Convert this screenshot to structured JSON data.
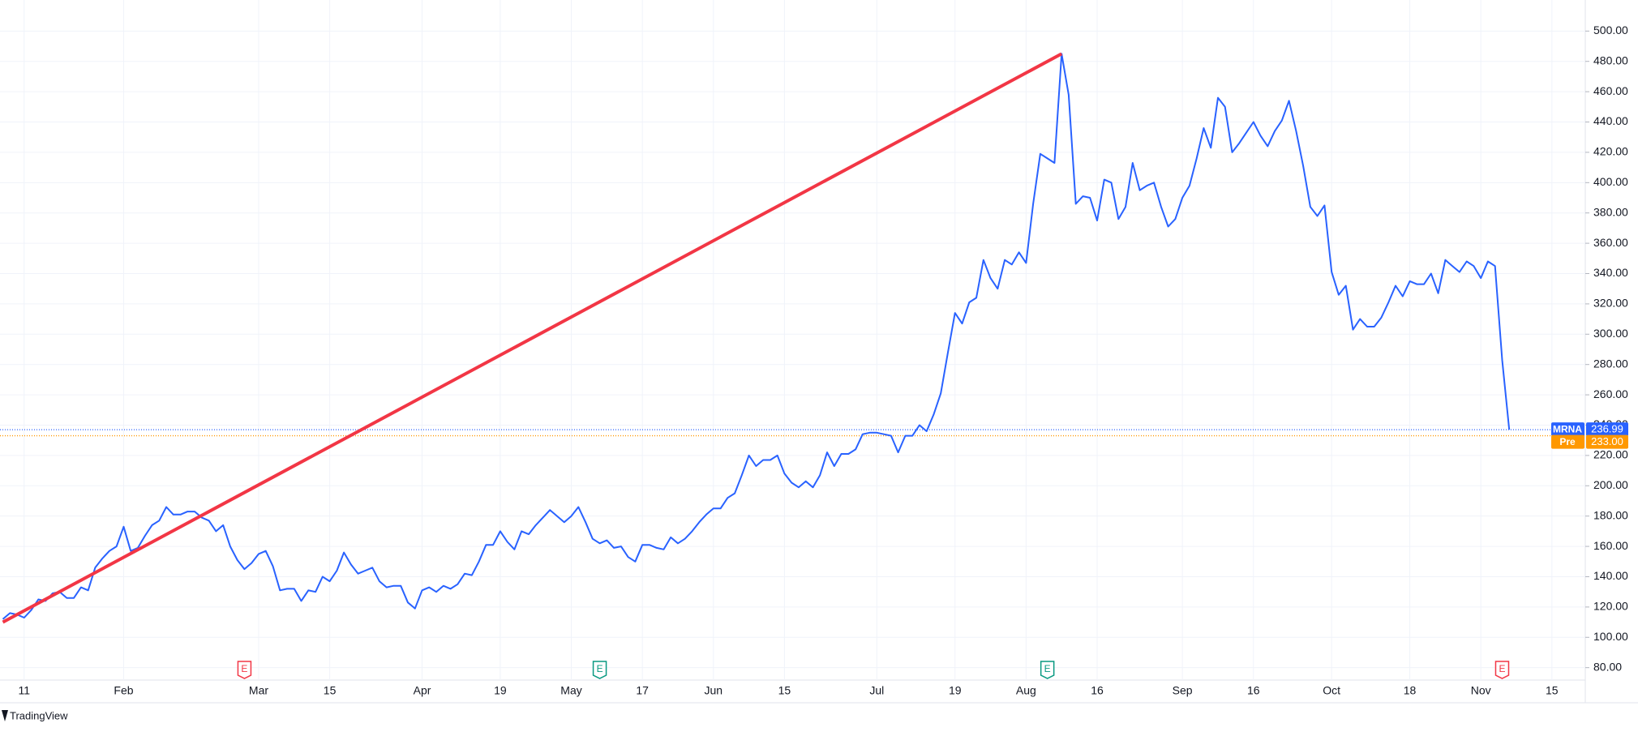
{
  "chart_data": {
    "type": "line",
    "series": [
      {
        "name": "MRNA",
        "color": "#2962ff",
        "x": [
          -3,
          -2,
          -1,
          0,
          1,
          2,
          3,
          4,
          5,
          6,
          7,
          8,
          9,
          10,
          11,
          12,
          13,
          14,
          15,
          16,
          17,
          18,
          19,
          20,
          21,
          22,
          23,
          24,
          25,
          26,
          27,
          28,
          29,
          30,
          31,
          32,
          33,
          34,
          35,
          36,
          37,
          38,
          39,
          40,
          41,
          42,
          43,
          44,
          45,
          46,
          47,
          48,
          49,
          50,
          51,
          52,
          53,
          54,
          55,
          56,
          57,
          58,
          59,
          60,
          61,
          62,
          63,
          64,
          65,
          66,
          67,
          68,
          69,
          70,
          71,
          72,
          73,
          74,
          75,
          76,
          77,
          78,
          79,
          80,
          81,
          82,
          83,
          84,
          85,
          86,
          87,
          88,
          89,
          90,
          91,
          92,
          93,
          94,
          95,
          96,
          97,
          98,
          99,
          100,
          101,
          102,
          103,
          104,
          105,
          106,
          107,
          108,
          109,
          110,
          111,
          112,
          113,
          114,
          115,
          116,
          117,
          118,
          119,
          120,
          121,
          122,
          123,
          124,
          125,
          126,
          127,
          128,
          129,
          130,
          131,
          132,
          133,
          134,
          135,
          136,
          137,
          138,
          139,
          140,
          141,
          142,
          143,
          144,
          145,
          146,
          147,
          148,
          149,
          150,
          151,
          152,
          153,
          154,
          155,
          156,
          157,
          158,
          159,
          160,
          161,
          162,
          163,
          164,
          165,
          166,
          167,
          168,
          169,
          170,
          171,
          172,
          173,
          174,
          175,
          176,
          177,
          178,
          179,
          180,
          181,
          182,
          183,
          184,
          185,
          186,
          187,
          188,
          189,
          190,
          191,
          192,
          193,
          194,
          195,
          196,
          197,
          198,
          199,
          200,
          201,
          202,
          203,
          204,
          205,
          206,
          207,
          208,
          209
        ],
        "values": [
          112,
          116,
          115,
          113,
          118,
          125,
          124,
          129,
          130,
          126,
          126,
          133,
          131,
          146,
          152,
          157,
          160,
          173,
          157,
          159,
          167,
          174,
          177,
          186,
          181,
          181,
          183,
          183,
          179,
          177,
          170,
          174,
          160,
          151,
          145,
          149,
          155,
          157,
          147,
          131,
          132,
          132,
          124,
          131,
          130,
          140,
          137,
          144,
          156,
          148,
          142,
          144,
          146,
          137,
          133,
          134,
          134,
          123,
          119,
          131,
          133,
          130,
          134,
          132,
          135,
          142,
          141,
          150,
          161,
          161,
          170,
          163,
          158,
          170,
          168,
          174,
          179,
          184,
          180,
          176,
          180,
          186,
          176,
          165,
          162,
          164,
          159,
          160,
          153,
          150,
          161,
          161,
          159,
          158,
          166,
          162,
          165,
          170,
          176,
          181,
          185,
          185,
          192,
          195,
          207,
          220,
          213,
          217,
          217,
          220,
          208,
          202,
          199,
          203,
          199,
          207,
          222,
          213,
          221,
          221,
          224,
          234,
          235,
          235,
          234,
          233,
          222,
          233,
          233,
          240,
          236,
          247,
          261,
          288,
          314,
          307,
          321,
          324,
          349,
          337,
          330,
          349,
          346,
          354,
          347,
          386,
          419,
          416,
          413,
          485,
          458,
          386,
          391,
          390,
          375,
          402,
          400,
          376,
          384,
          413,
          395,
          398,
          400,
          384,
          371,
          376,
          390,
          398,
          416,
          436,
          423,
          456,
          450,
          420,
          426,
          433,
          440,
          431,
          424,
          434,
          441,
          454,
          434,
          411,
          384,
          378,
          385,
          341,
          326,
          332,
          303,
          310,
          305,
          305,
          311,
          321,
          332,
          325,
          335,
          333,
          333,
          340,
          327,
          349,
          345,
          341,
          348,
          345,
          337,
          348,
          345,
          283,
          237
        ]
      }
    ],
    "trendline": {
      "color": "#f23645",
      "x": [
        -3,
        146
      ],
      "values": [
        110,
        485
      ]
    },
    "price_lines": [
      {
        "name": "MRNA",
        "value": 236.99,
        "label": "236.99",
        "color": "#2962ff"
      },
      {
        "name": "Pre",
        "value": 233,
        "label": "233.00",
        "color": "#ff9800"
      }
    ],
    "events": [
      {
        "x": 31,
        "label": "E",
        "color": "#f23645"
      },
      {
        "x": 81,
        "label": "E",
        "color": "#089981"
      },
      {
        "x": 144,
        "label": "E",
        "color": "#089981"
      },
      {
        "x": 208,
        "label": "E",
        "color": "#f23645"
      }
    ],
    "xlim": [
      -3.4,
      219.7
    ],
    "xticks": [
      {
        "value": 0,
        "label": "11"
      },
      {
        "value": 14,
        "label": "Feb"
      },
      {
        "value": 33,
        "label": "Mar"
      },
      {
        "value": 43,
        "label": "15"
      },
      {
        "value": 56,
        "label": "Apr"
      },
      {
        "value": 67,
        "label": "19"
      },
      {
        "value": 77,
        "label": "May"
      },
      {
        "value": 87,
        "label": "17"
      },
      {
        "value": 97,
        "label": "Jun"
      },
      {
        "value": 107,
        "label": "15"
      },
      {
        "value": 120,
        "label": "Jul"
      },
      {
        "value": 131,
        "label": "19"
      },
      {
        "value": 141,
        "label": "Aug"
      },
      {
        "value": 151,
        "label": "16"
      },
      {
        "value": 163,
        "label": "Sep"
      },
      {
        "value": 173,
        "label": "16"
      },
      {
        "value": 184,
        "label": "Oct"
      },
      {
        "value": 195,
        "label": "18"
      },
      {
        "value": 205,
        "label": "Nov"
      },
      {
        "value": 215,
        "label": "15"
      }
    ],
    "ylim": [
      71.8,
      520.5
    ],
    "yticks": [
      {
        "value": 80,
        "label": "80.00"
      },
      {
        "value": 100,
        "label": "100.00"
      },
      {
        "value": 120,
        "label": "120.00"
      },
      {
        "value": 140,
        "label": "140.00"
      },
      {
        "value": 160,
        "label": "160.00"
      },
      {
        "value": 180,
        "label": "180.00"
      },
      {
        "value": 200,
        "label": "200.00"
      },
      {
        "value": 220,
        "label": "220.00"
      },
      {
        "value": 240,
        "label": "240.00"
      },
      {
        "value": 260,
        "label": "260.00"
      },
      {
        "value": 280,
        "label": "280.00"
      },
      {
        "value": 300,
        "label": "300.00"
      },
      {
        "value": 320,
        "label": "320.00"
      },
      {
        "value": 340,
        "label": "340.00"
      },
      {
        "value": 360,
        "label": "360.00"
      },
      {
        "value": 380,
        "label": "380.00"
      },
      {
        "value": 400,
        "label": "400.00"
      },
      {
        "value": 420,
        "label": "420.00"
      },
      {
        "value": 440,
        "label": "440.00"
      },
      {
        "value": 460,
        "label": "460.00"
      },
      {
        "value": 480,
        "label": "480.00"
      },
      {
        "value": 500,
        "label": "500.00"
      }
    ],
    "grid": true,
    "footer": "TradingView"
  }
}
